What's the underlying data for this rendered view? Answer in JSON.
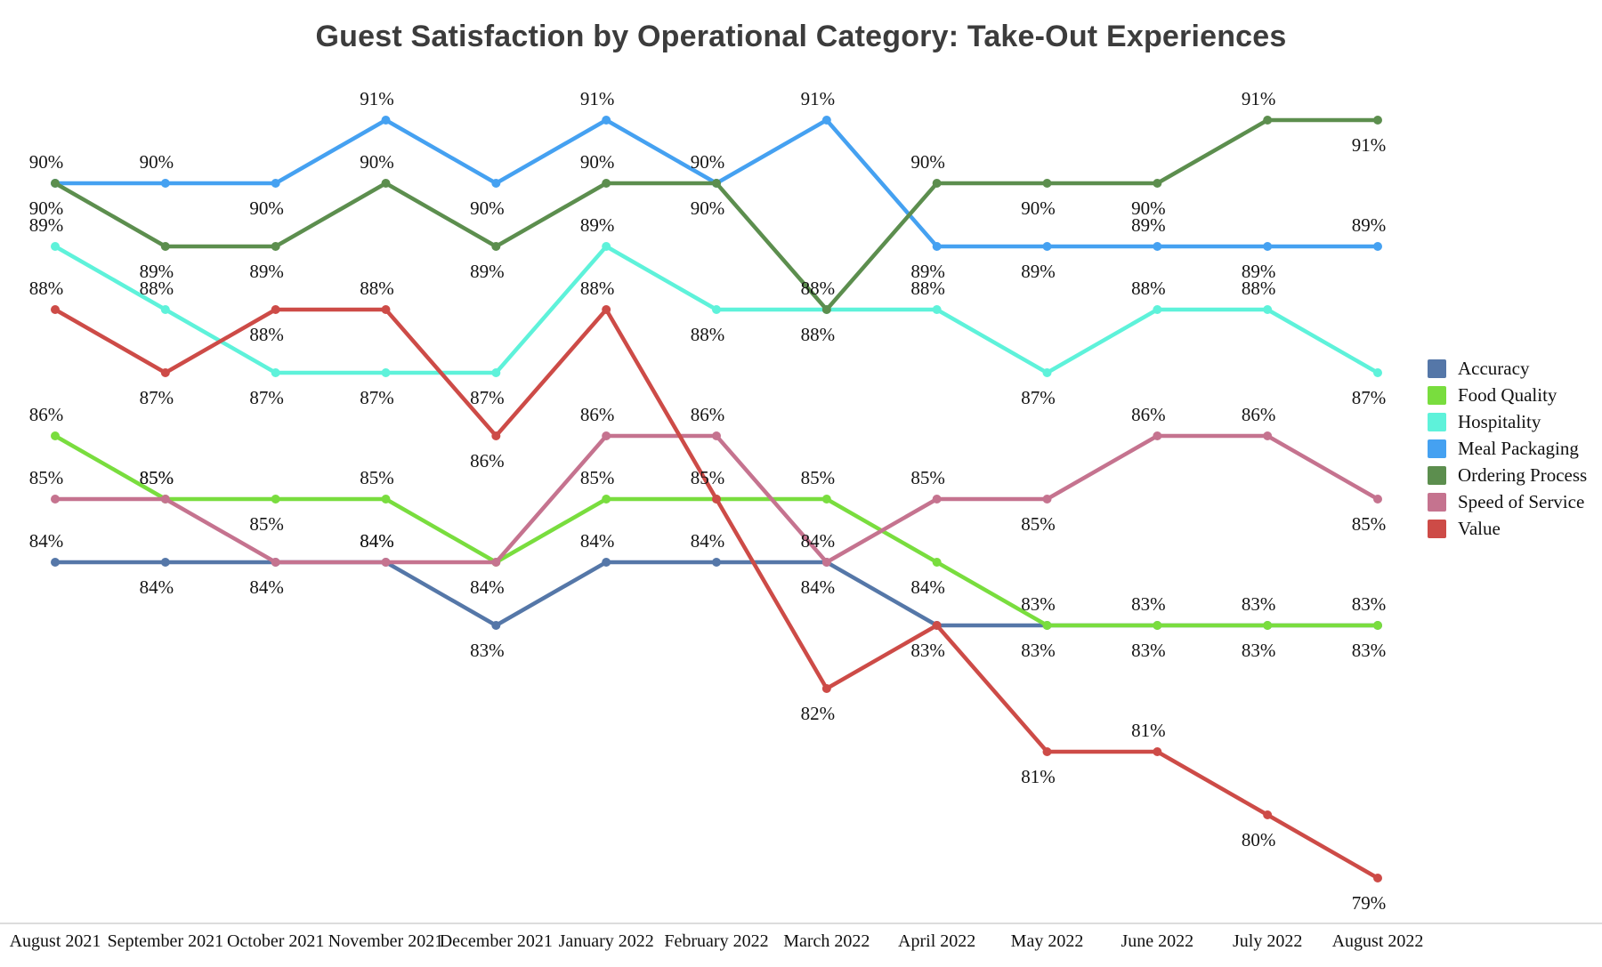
{
  "title": "Guest Satisfaction by Operational Category: Take-Out Experiences",
  "colors": {
    "title_text": "#3c3c3c",
    "label_text": "#141414",
    "axis_line": "#dcdcdc",
    "background": "#ffffff"
  },
  "chart_data": {
    "type": "line",
    "title": "Guest Satisfaction by Operational Category: Take-Out Experiences",
    "unit": "%",
    "ylim": [
      78.5,
      92
    ],
    "grid": false,
    "legend_position": "right",
    "x": [
      "August 2021",
      "September 2021",
      "October 2021",
      "November 2021",
      "December 2021",
      "January 2022",
      "February 2022",
      "March 2022",
      "April 2022",
      "May 2022",
      "June 2022",
      "July 2022",
      "August 2022"
    ],
    "series": [
      {
        "name": "Accuracy",
        "color": "#5577a8",
        "values": [
          84,
          84,
          84,
          84,
          83,
          84,
          84,
          84,
          83,
          83,
          83,
          83,
          83
        ],
        "label_pos": [
          "a",
          "b",
          "b",
          "a",
          "b",
          "a",
          "a",
          "b",
          "b",
          "b",
          "b",
          "b",
          "b"
        ]
      },
      {
        "name": "Food Quality",
        "color": "#79dd3e",
        "values": [
          86,
          85,
          85,
          85,
          84,
          85,
          85,
          85,
          84,
          83,
          83,
          83,
          83
        ],
        "label_pos": [
          "a",
          "a",
          "b",
          "a",
          "h",
          "a",
          "a",
          "a",
          "b",
          "a",
          "a",
          "a",
          "a"
        ]
      },
      {
        "name": "Hospitality",
        "color": "#5ef2da",
        "values": [
          89,
          88,
          87,
          87,
          87,
          89,
          88,
          88,
          88,
          87,
          88,
          88,
          87
        ],
        "label_pos": [
          "a",
          "a",
          "b",
          "b",
          "b",
          "a",
          "b",
          "b",
          "a",
          "b",
          "a",
          "a",
          "b"
        ]
      },
      {
        "name": "Meal Packaging",
        "color": "#45a1f1",
        "values": [
          90,
          90,
          90,
          91,
          90,
          91,
          90,
          91,
          89,
          89,
          89,
          89,
          89
        ],
        "label_pos": [
          "b",
          "a",
          "b",
          "a",
          "b",
          "a",
          "a",
          "a",
          "b",
          "b",
          "a",
          "b",
          "a"
        ]
      },
      {
        "name": "Ordering Process",
        "color": "#5c8e4e",
        "values": [
          90,
          89,
          89,
          90,
          89,
          90,
          90,
          88,
          90,
          90,
          90,
          91,
          91
        ],
        "label_pos": [
          "a",
          "b",
          "b",
          "a",
          "b",
          "a",
          "b",
          "a",
          "a",
          "b",
          "b",
          "a",
          "b"
        ]
      },
      {
        "name": "Speed of Service",
        "color": "#c5738f",
        "values": [
          85,
          85,
          84,
          84,
          84,
          86,
          86,
          84,
          85,
          85,
          86,
          86,
          85
        ],
        "label_pos": [
          "a",
          "a",
          "h",
          "a",
          "b",
          "a",
          "a",
          "a",
          "a",
          "b",
          "a",
          "a",
          "b"
        ]
      },
      {
        "name": "Value",
        "color": "#cd4b47",
        "values": [
          88,
          87,
          88,
          88,
          86,
          88,
          85,
          82,
          83,
          81,
          81,
          80,
          79
        ],
        "label_pos": [
          "a",
          "b",
          "b",
          "a",
          "b",
          "a",
          "h",
          "b",
          "h",
          "b",
          "a",
          "b",
          "b"
        ]
      }
    ]
  }
}
